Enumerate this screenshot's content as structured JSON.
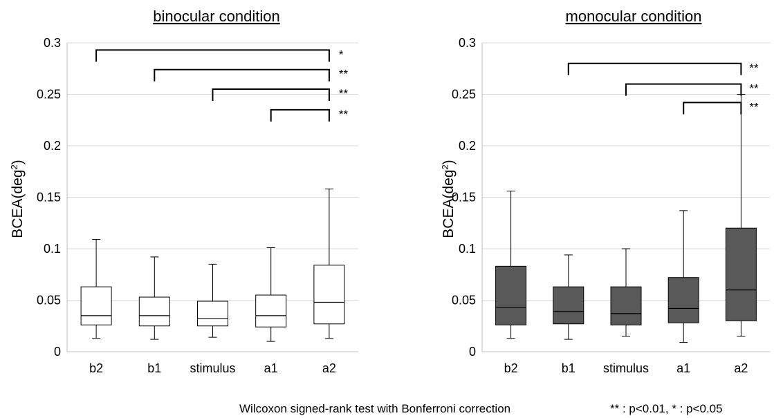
{
  "chart_data": [
    {
      "type": "box",
      "title": "binocular condition",
      "ylabel": "BCEA(deg",
      "ylabel_sup": "2",
      "ylabel_close": ")",
      "ylim": [
        0,
        0.3
      ],
      "yticks": [
        0,
        0.05,
        0.1,
        0.15,
        0.2,
        0.25,
        0.3
      ],
      "ytick_labels": [
        "0",
        "0.05",
        "0.1",
        "0.15",
        "0.2",
        "0.25",
        "0.3"
      ],
      "categories": [
        "b2",
        "b1",
        "stimulus",
        "a1",
        "a2"
      ],
      "box_color": "#ffffff",
      "boxes": [
        {
          "min": 0.013,
          "q1": 0.026,
          "median": 0.035,
          "q3": 0.063,
          "max": 0.109
        },
        {
          "min": 0.012,
          "q1": 0.025,
          "median": 0.035,
          "q3": 0.053,
          "max": 0.092
        },
        {
          "min": 0.014,
          "q1": 0.025,
          "median": 0.032,
          "q3": 0.049,
          "max": 0.085
        },
        {
          "min": 0.01,
          "q1": 0.024,
          "median": 0.035,
          "q3": 0.055,
          "max": 0.101
        },
        {
          "min": 0.013,
          "q1": 0.027,
          "median": 0.048,
          "q3": 0.084,
          "max": 0.158
        }
      ],
      "significance": [
        {
          "from": "b2",
          "to": "a2",
          "y": 0.293,
          "label": "*"
        },
        {
          "from": "b1",
          "to": "a2",
          "y": 0.274,
          "label": "**"
        },
        {
          "from": "stimulus",
          "to": "a2",
          "y": 0.255,
          "label": "**"
        },
        {
          "from": "a1",
          "to": "a2",
          "y": 0.235,
          "label": "**"
        }
      ]
    },
    {
      "type": "box",
      "title": "monocular condition",
      "ylabel": "BCEA(deg",
      "ylabel_sup": "2",
      "ylabel_close": ")",
      "ylim": [
        0,
        0.3
      ],
      "yticks": [
        0,
        0.05,
        0.1,
        0.15,
        0.2,
        0.25,
        0.3
      ],
      "ytick_labels": [
        "0",
        "0.05",
        "0.1",
        "0.15",
        "0.2",
        "0.25",
        "0.3"
      ],
      "categories": [
        "b2",
        "b1",
        "stimulus",
        "a1",
        "a2"
      ],
      "box_color": "#595959",
      "boxes": [
        {
          "min": 0.013,
          "q1": 0.026,
          "median": 0.043,
          "q3": 0.083,
          "max": 0.156
        },
        {
          "min": 0.012,
          "q1": 0.027,
          "median": 0.039,
          "q3": 0.063,
          "max": 0.094
        },
        {
          "min": 0.015,
          "q1": 0.026,
          "median": 0.037,
          "q3": 0.063,
          "max": 0.1
        },
        {
          "min": 0.009,
          "q1": 0.028,
          "median": 0.042,
          "q3": 0.072,
          "max": 0.137
        },
        {
          "min": 0.015,
          "q1": 0.03,
          "median": 0.06,
          "q3": 0.12,
          "max": 0.25
        }
      ],
      "significance": [
        {
          "from": "b1",
          "to": "a2",
          "y": 0.28,
          "label": "**"
        },
        {
          "from": "stimulus",
          "to": "a2",
          "y": 0.26,
          "label": "**"
        },
        {
          "from": "a1",
          "to": "a2",
          "y": 0.242,
          "label": "**"
        }
      ]
    }
  ],
  "footnote": {
    "test": "Wilcoxon signed-rank test with Bonferroni correction",
    "legend": "** : p<0.01, * : p<0.05"
  }
}
